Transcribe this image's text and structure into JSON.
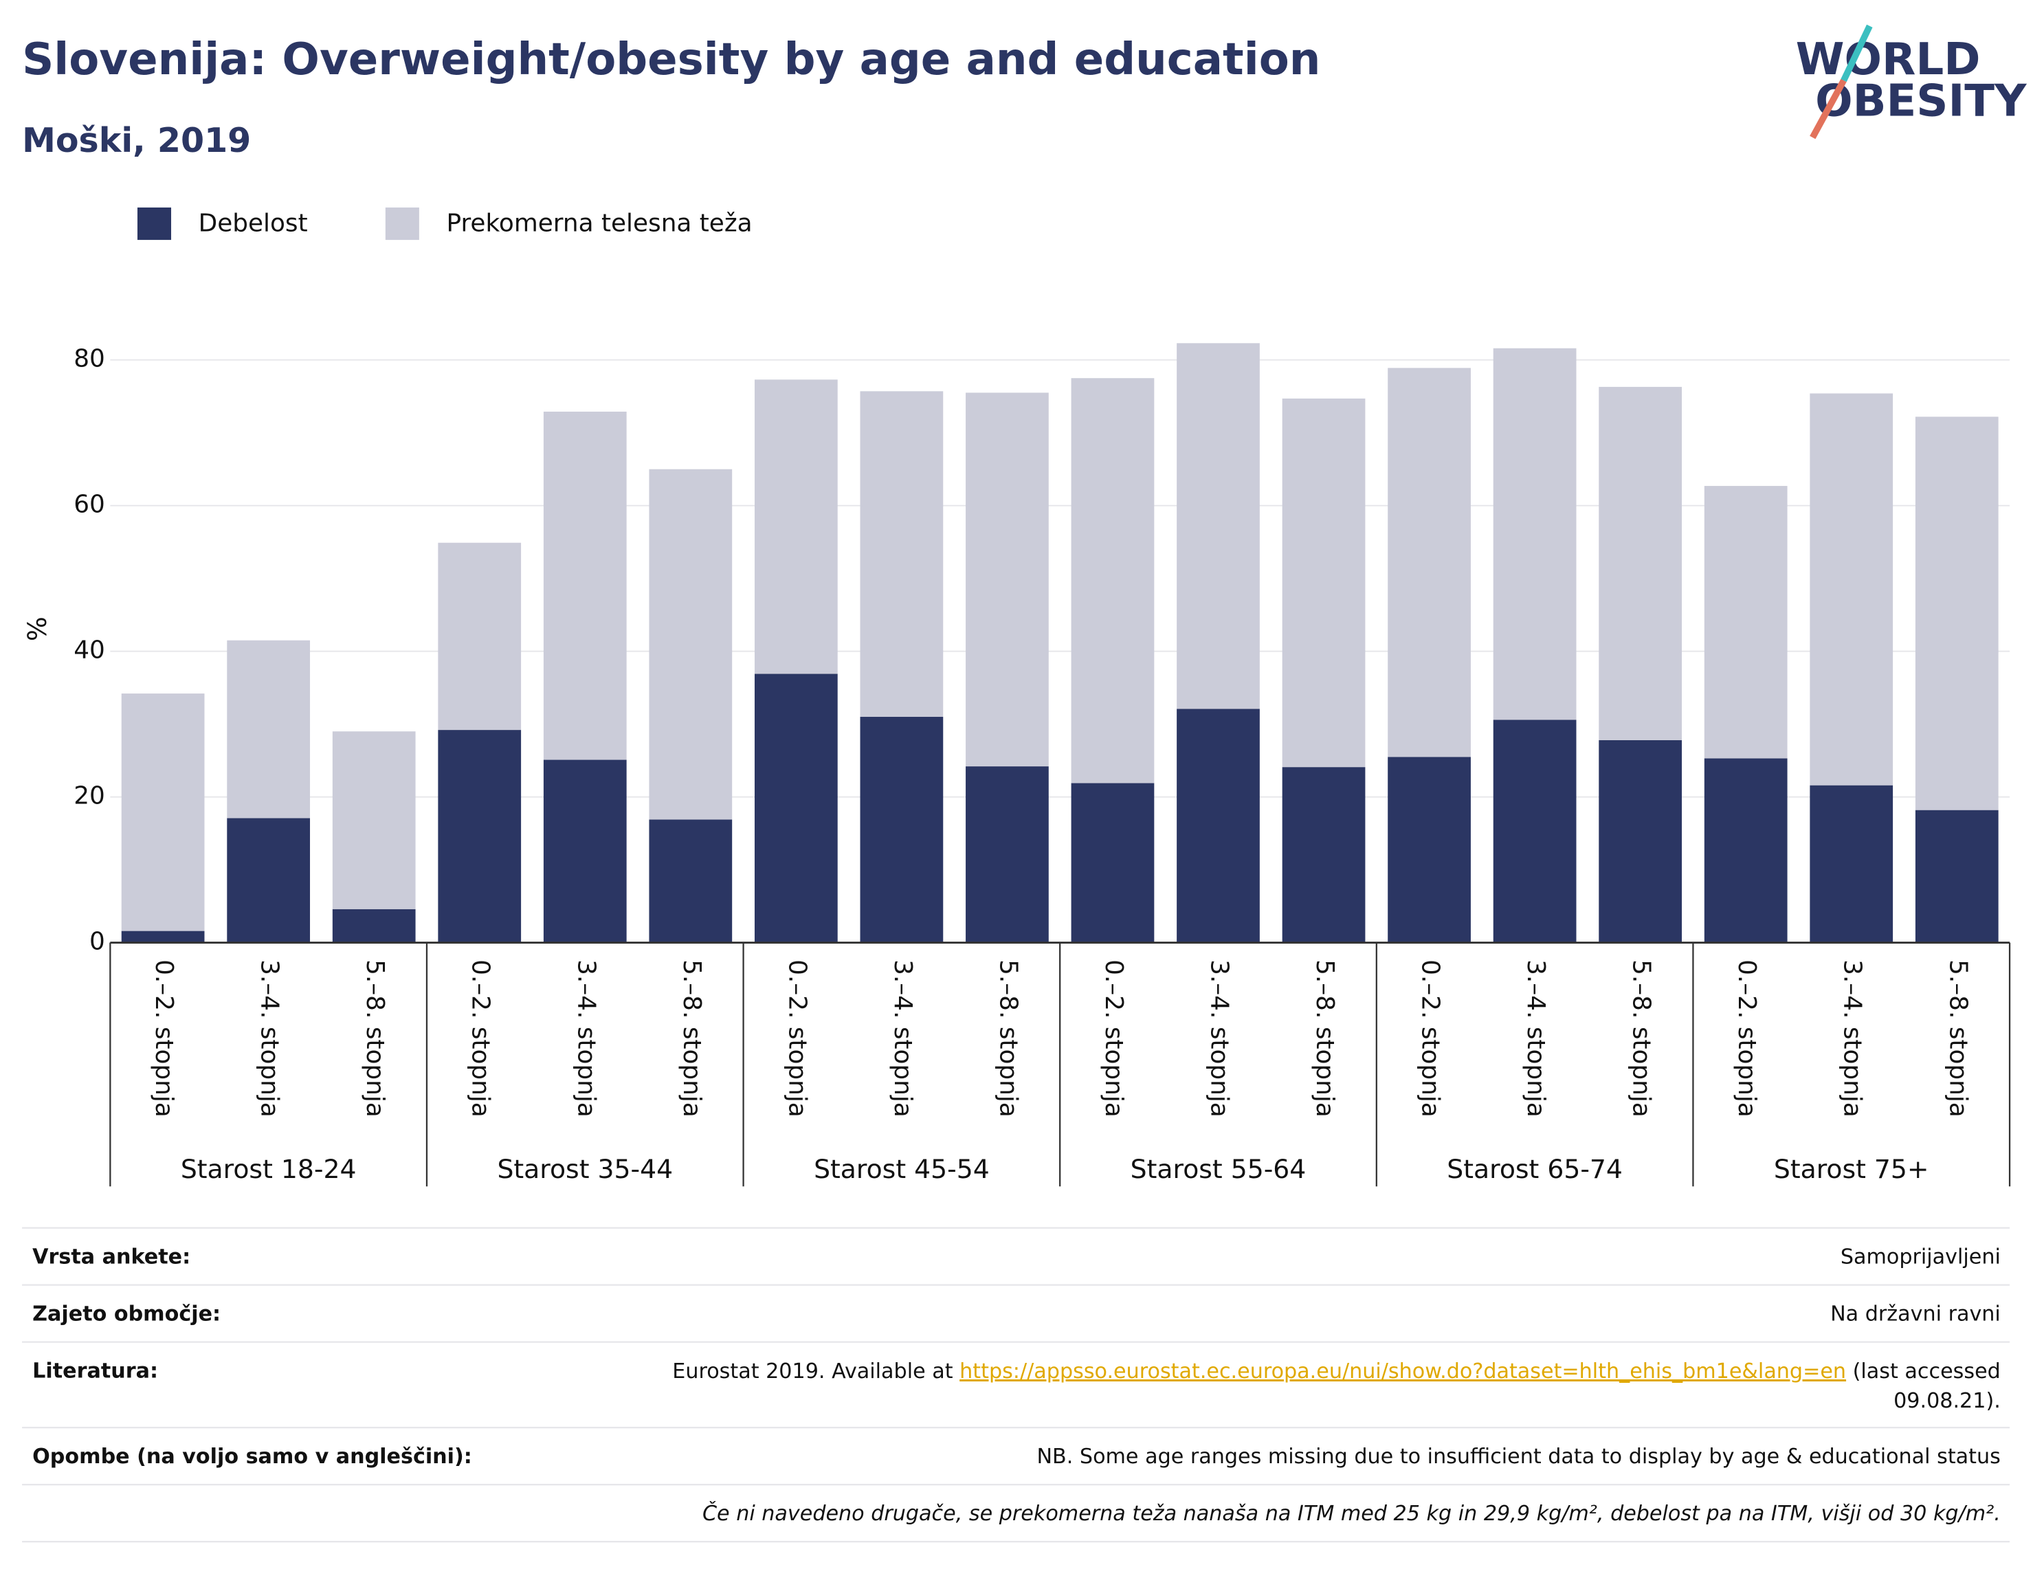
{
  "chart_data": {
    "type": "bar",
    "stacked": true,
    "title": "Slovenija: Overweight/obesity by age and education",
    "subtitle": "Moški, 2019",
    "y_label": "%",
    "logo": [
      "WORLD",
      "OBESITY"
    ],
    "categories": [
      "0.–2. stopnja",
      "3.–4. stopnja",
      "5.–8. stopnja",
      "0.–2. stopnja",
      "3.–4. stopnja",
      "5.–8. stopnja",
      "0.–2. stopnja",
      "3.–4. stopnja",
      "5.–8. stopnja",
      "0.–2. stopnja",
      "3.–4. stopnja",
      "5.–8. stopnja",
      "0.–2. stopnja",
      "3.–4. stopnja",
      "5.–8. stopnja",
      "0.–2. stopnja",
      "3.–4. stopnja",
      "5.–8. stopnja"
    ],
    "groups": [
      "Starost 18-24",
      "Starost 35-44",
      "Starost 45-54",
      "Starost 55-64",
      "Starost 65-74",
      "Starost 75+"
    ],
    "series": [
      {
        "name": "Debelost",
        "color": "#2b3663",
        "values": [
          1.6,
          17.1,
          4.6,
          29.2,
          25.1,
          16.9,
          36.9,
          31.0,
          24.2,
          21.9,
          32.1,
          24.1,
          25.5,
          30.6,
          27.8,
          25.3,
          21.6,
          18.2
        ]
      },
      {
        "name": "Prekomerna telesna teža",
        "color": "#cbccd9",
        "values": [
          32.6,
          24.4,
          24.4,
          25.7,
          47.8,
          48.1,
          40.4,
          44.7,
          51.3,
          55.6,
          50.2,
          50.6,
          53.4,
          51.0,
          48.5,
          37.4,
          53.8,
          54.0
        ]
      }
    ],
    "ylim": [
      0,
      89
    ],
    "yticks": [
      0,
      20,
      40,
      60,
      80
    ],
    "grid": true,
    "legend": "top-left"
  },
  "table": {
    "rows": [
      [
        "Vrsta ankete:",
        "Samoprijavljeni"
      ],
      [
        "Zajeto območje:",
        "Na državni ravni"
      ],
      [
        "Literatura:",
        [
          "Eurostat 2019. Available at ",
          "https://appsso.eurostat.ec.europa.eu/nui/show.do?dataset=hlth_ehis_bm1e&lang=en",
          " (last accessed",
          "09.08.21)."
        ]
      ],
      [
        "Opombe (na voljo samo v angleščini):",
        "NB. Some age ranges missing due to insufficient data to display by age & educational status"
      ]
    ],
    "footnote": "Če ni navedeno drugače, se prekomerna teža nanaša na ITM med 25 kg in 29,9 kg/m², debelost pa na ITM, višji od 30 kg/m²."
  }
}
